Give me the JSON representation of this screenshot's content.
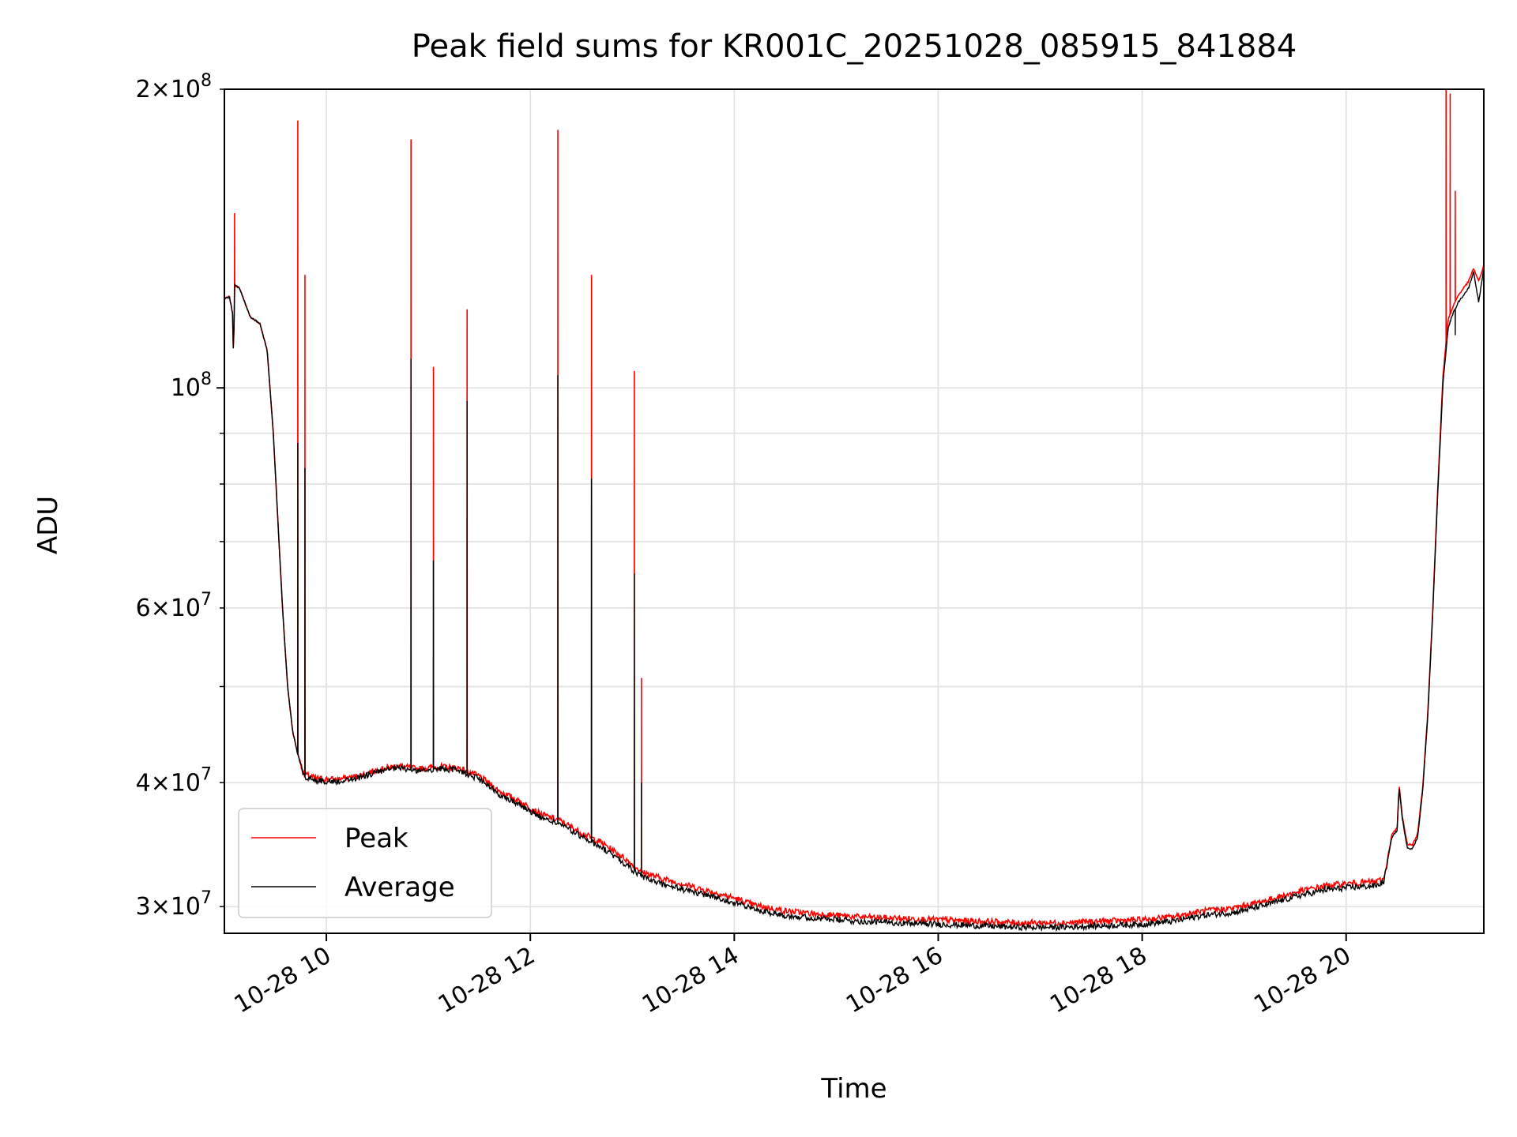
{
  "chart_data": {
    "type": "line",
    "title": "Peak field sums for KR001C_20251028_085915_841884",
    "xlabel": "Time",
    "ylabel": "ADU",
    "yscale": "log",
    "ylim": [
      28200000,
      200000000
    ],
    "xlim": [
      9.0,
      21.35
    ],
    "grid": true,
    "legend_position": "lower-left",
    "x_ticks": [
      {
        "value": 10,
        "label": "10-28 10"
      },
      {
        "value": 12,
        "label": "10-28 12"
      },
      {
        "value": 14,
        "label": "10-28 14"
      },
      {
        "value": 16,
        "label": "10-28 16"
      },
      {
        "value": 18,
        "label": "10-28 18"
      },
      {
        "value": 20,
        "label": "10-28 20"
      }
    ],
    "y_major_ticks": [
      {
        "value": 100000000,
        "base": "10",
        "exp": "8",
        "label": "10^8"
      }
    ],
    "y_minor_ticks": [
      {
        "value": 30000000,
        "mant": "3",
        "base": "10",
        "exp": "7",
        "label": "3×10^7"
      },
      {
        "value": 40000000,
        "mant": "4",
        "base": "10",
        "exp": "7",
        "label": "4×10^7"
      },
      {
        "value": 60000000,
        "mant": "6",
        "base": "10",
        "exp": "7",
        "label": "6×10^7"
      },
      {
        "value": 200000000,
        "mant": "2",
        "base": "10",
        "exp": "8",
        "label": "2×10^8"
      },
      {
        "value": 50000000,
        "label": ""
      },
      {
        "value": 70000000,
        "label": ""
      },
      {
        "value": 80000000,
        "label": ""
      },
      {
        "value": 90000000,
        "label": ""
      }
    ],
    "series": [
      {
        "name": "Peak",
        "color": "#ff0000",
        "baseline": [
          [
            9.0,
            123000000
          ],
          [
            9.05,
            123500000
          ],
          [
            9.08,
            119000000
          ],
          [
            9.09,
            106000000
          ],
          [
            9.1,
            127000000
          ],
          [
            9.15,
            126000000
          ],
          [
            9.2,
            122000000
          ],
          [
            9.25,
            118000000
          ],
          [
            9.35,
            116000000
          ],
          [
            9.42,
            109000000
          ],
          [
            9.48,
            90000000
          ],
          [
            9.52,
            75000000
          ],
          [
            9.57,
            60000000
          ],
          [
            9.62,
            50000000
          ],
          [
            9.67,
            45000000
          ],
          [
            9.72,
            42800000
          ],
          [
            9.78,
            40800000
          ],
          [
            9.9,
            40400000
          ],
          [
            10.1,
            40300000
          ],
          [
            10.3,
            40600000
          ],
          [
            10.5,
            41200000
          ],
          [
            10.7,
            41600000
          ],
          [
            10.9,
            41300000
          ],
          [
            11.1,
            41500000
          ],
          [
            11.3,
            41400000
          ],
          [
            11.5,
            40600000
          ],
          [
            11.7,
            39200000
          ],
          [
            11.9,
            38300000
          ],
          [
            12.1,
            37200000
          ],
          [
            12.3,
            36600000
          ],
          [
            12.5,
            35600000
          ],
          [
            12.7,
            34800000
          ],
          [
            12.9,
            33700000
          ],
          [
            13.1,
            32500000
          ],
          [
            13.3,
            32000000
          ],
          [
            13.5,
            31600000
          ],
          [
            13.8,
            31000000
          ],
          [
            14.0,
            30600000
          ],
          [
            14.2,
            30100000
          ],
          [
            14.5,
            29700000
          ],
          [
            14.8,
            29500000
          ],
          [
            15.2,
            29300000
          ],
          [
            15.6,
            29200000
          ],
          [
            16.0,
            29100000
          ],
          [
            16.4,
            29000000
          ],
          [
            16.8,
            28900000
          ],
          [
            17.2,
            28900000
          ],
          [
            17.6,
            29000000
          ],
          [
            18.0,
            29100000
          ],
          [
            18.3,
            29300000
          ],
          [
            18.6,
            29700000
          ],
          [
            18.9,
            29900000
          ],
          [
            19.2,
            30400000
          ],
          [
            19.5,
            31000000
          ],
          [
            19.8,
            31500000
          ],
          [
            20.1,
            31700000
          ],
          [
            20.3,
            31800000
          ],
          [
            20.37,
            32000000
          ],
          [
            20.45,
            35500000
          ],
          [
            20.5,
            36000000
          ],
          [
            20.52,
            39800000
          ],
          [
            20.55,
            37000000
          ],
          [
            20.6,
            34700000
          ],
          [
            20.65,
            34600000
          ],
          [
            20.7,
            35500000
          ],
          [
            20.75,
            39500000
          ],
          [
            20.8,
            47000000
          ],
          [
            20.85,
            60000000
          ],
          [
            20.9,
            80000000
          ],
          [
            20.95,
            103000000
          ],
          [
            21.0,
            117000000
          ],
          [
            21.05,
            121000000
          ],
          [
            21.1,
            124000000
          ],
          [
            21.15,
            126000000
          ],
          [
            21.2,
            128000000
          ],
          [
            21.25,
            132000000
          ],
          [
            21.3,
            128000000
          ],
          [
            21.35,
            133000000
          ]
        ],
        "spikes": [
          [
            9.1,
            150000000
          ],
          [
            9.72,
            186000000
          ],
          [
            9.79,
            130000000
          ],
          [
            10.83,
            178000000
          ],
          [
            11.05,
            105000000
          ],
          [
            11.38,
            120000000
          ],
          [
            12.27,
            182000000
          ],
          [
            12.6,
            130000000
          ],
          [
            13.02,
            104000000
          ],
          [
            13.09,
            51000000
          ],
          [
            20.98,
            200000000
          ],
          [
            21.02,
            198000000
          ],
          [
            21.07,
            158000000
          ]
        ]
      },
      {
        "name": "Average",
        "color": "#000000",
        "baseline": [
          [
            9.0,
            123000000
          ],
          [
            9.05,
            123500000
          ],
          [
            9.08,
            119000000
          ],
          [
            9.09,
            106000000
          ],
          [
            9.1,
            127000000
          ],
          [
            9.15,
            126000000
          ],
          [
            9.2,
            122000000
          ],
          [
            9.25,
            118000000
          ],
          [
            9.35,
            116000000
          ],
          [
            9.42,
            109000000
          ],
          [
            9.48,
            90000000
          ],
          [
            9.52,
            75000000
          ],
          [
            9.57,
            60000000
          ],
          [
            9.62,
            50000000
          ],
          [
            9.67,
            45000000
          ],
          [
            9.72,
            42700000
          ],
          [
            9.78,
            40600000
          ],
          [
            9.9,
            40200000
          ],
          [
            10.1,
            40100000
          ],
          [
            10.3,
            40400000
          ],
          [
            10.5,
            41000000
          ],
          [
            10.7,
            41400000
          ],
          [
            10.9,
            41100000
          ],
          [
            11.1,
            41300000
          ],
          [
            11.3,
            41200000
          ],
          [
            11.5,
            40300000
          ],
          [
            11.7,
            38900000
          ],
          [
            11.9,
            38000000
          ],
          [
            12.1,
            36900000
          ],
          [
            12.3,
            36300000
          ],
          [
            12.5,
            35300000
          ],
          [
            12.7,
            34400000
          ],
          [
            12.9,
            33300000
          ],
          [
            13.1,
            32100000
          ],
          [
            13.3,
            31600000
          ],
          [
            13.5,
            31200000
          ],
          [
            13.8,
            30700000
          ],
          [
            14.0,
            30300000
          ],
          [
            14.2,
            29800000
          ],
          [
            14.5,
            29400000
          ],
          [
            14.8,
            29200000
          ],
          [
            15.2,
            29000000
          ],
          [
            15.6,
            28900000
          ],
          [
            16.0,
            28800000
          ],
          [
            16.4,
            28700000
          ],
          [
            16.8,
            28600000
          ],
          [
            17.2,
            28600000
          ],
          [
            17.6,
            28700000
          ],
          [
            18.0,
            28800000
          ],
          [
            18.3,
            29000000
          ],
          [
            18.6,
            29400000
          ],
          [
            18.9,
            29600000
          ],
          [
            19.2,
            30100000
          ],
          [
            19.5,
            30700000
          ],
          [
            19.8,
            31200000
          ],
          [
            20.1,
            31400000
          ],
          [
            20.3,
            31500000
          ],
          [
            20.37,
            31800000
          ],
          [
            20.45,
            35300000
          ],
          [
            20.5,
            35800000
          ],
          [
            20.52,
            39600000
          ],
          [
            20.55,
            36800000
          ],
          [
            20.6,
            34400000
          ],
          [
            20.65,
            34300000
          ],
          [
            20.7,
            35200000
          ],
          [
            20.75,
            39200000
          ],
          [
            20.8,
            46500000
          ],
          [
            20.85,
            59500000
          ],
          [
            20.9,
            79000000
          ],
          [
            20.95,
            101000000
          ],
          [
            21.0,
            115000000
          ],
          [
            21.05,
            119000000
          ],
          [
            21.1,
            122000000
          ],
          [
            21.15,
            124000000
          ],
          [
            21.2,
            126000000
          ],
          [
            21.25,
            131000000
          ],
          [
            21.3,
            122000000
          ],
          [
            21.35,
            132000000
          ]
        ],
        "spikes": [
          [
            9.72,
            88000000
          ],
          [
            9.79,
            83000000
          ],
          [
            10.83,
            107000000
          ],
          [
            11.05,
            67000000
          ],
          [
            11.38,
            97000000
          ],
          [
            12.27,
            103000000
          ],
          [
            12.6,
            81000000
          ],
          [
            13.02,
            65000000
          ],
          [
            13.09,
            40000000
          ],
          [
            21.02,
            117000000
          ],
          [
            21.07,
            113000000
          ],
          [
            21.2,
            126000000
          ]
        ]
      }
    ]
  }
}
